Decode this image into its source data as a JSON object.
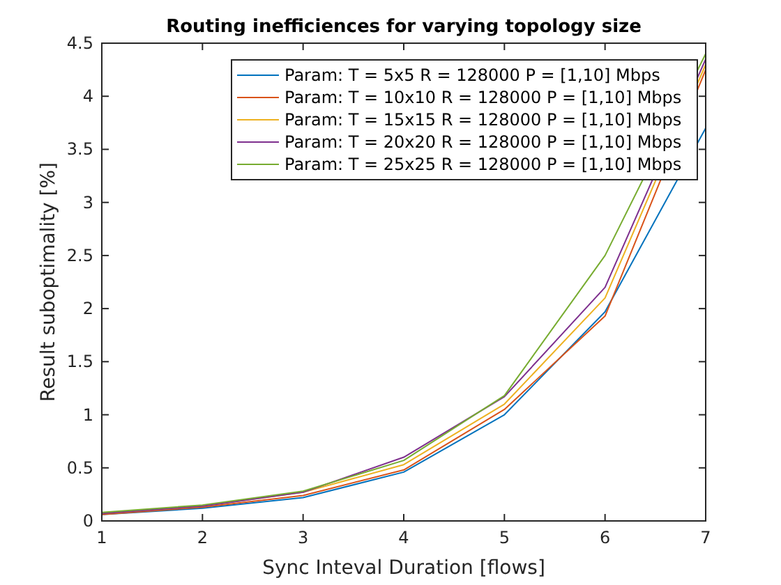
{
  "chart_data": {
    "type": "line",
    "title": "Routing inefficiences for varying topology size",
    "xlabel": "Sync Inteval Duration [flows]",
    "ylabel": "Result suboptimality [%]",
    "x": [
      1,
      2,
      3,
      4,
      5,
      6,
      7
    ],
    "series": [
      {
        "name": "Param: T = 5x5 R = 128000 P = [1,10] Mbps",
        "color": "#0072bd",
        "values": [
          0.06,
          0.12,
          0.22,
          0.46,
          1.0,
          1.97,
          3.7
        ]
      },
      {
        "name": "Param: T = 10x10 R = 128000 P = [1,10] Mbps",
        "color": "#d95319",
        "values": [
          0.06,
          0.13,
          0.24,
          0.48,
          1.05,
          1.93,
          4.25
        ]
      },
      {
        "name": "Param: T = 15x15 R = 128000 P = [1,10] Mbps",
        "color": "#edb120",
        "values": [
          0.07,
          0.14,
          0.27,
          0.53,
          1.1,
          2.1,
          4.3
        ]
      },
      {
        "name": "Param: T = 20x20 R = 128000 P = [1,10] Mbps",
        "color": "#7e2f8e",
        "values": [
          0.07,
          0.14,
          0.27,
          0.6,
          1.17,
          2.2,
          4.35
        ]
      },
      {
        "name": "Param: T = 25x25 R = 128000 P = [1,10] Mbps",
        "color": "#77ac30",
        "values": [
          0.08,
          0.15,
          0.28,
          0.57,
          1.18,
          2.5,
          4.4
        ]
      }
    ],
    "xlim": [
      1,
      7
    ],
    "xticks": [
      1,
      2,
      3,
      4,
      5,
      6,
      7
    ],
    "ylim": [
      0,
      4.5
    ],
    "yticks": [
      0,
      0.5,
      1,
      1.5,
      2,
      2.5,
      3,
      3.5,
      4,
      4.5
    ],
    "grid": false,
    "legend": "top right",
    "marker": "none",
    "line_style": "solid"
  }
}
